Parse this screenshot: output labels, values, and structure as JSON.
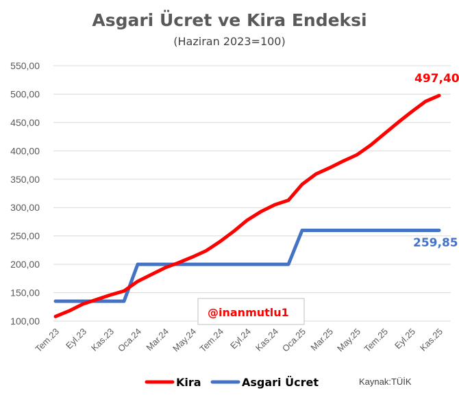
{
  "chart_data": {
    "type": "line",
    "title": "Asgari Ücret ve Kira Endeksi",
    "subtitle": "(Haziran 2023=100)",
    "ylim": [
      100,
      550
    ],
    "yticks": [
      "100,00",
      "150,00",
      "200,00",
      "250,00",
      "300,00",
      "350,00",
      "400,00",
      "450,00",
      "500,00",
      "550,00"
    ],
    "grid": true,
    "x": [
      "Tem.23",
      "Ağu.23",
      "Eyl.23",
      "Eki.23",
      "Kas.23",
      "Ara.23",
      "Oca.24",
      "Şub.24",
      "Mar.24",
      "Nis.24",
      "May.24",
      "Haz.24",
      "Tem.24",
      "Ağu.24",
      "Eyl.24",
      "Eki.24",
      "Kas.24",
      "Ara.24",
      "Oca.25",
      "Şub.25",
      "Mar.25",
      "Nis.25",
      "May.25",
      "Haz.25",
      "Tem.25",
      "Ağu.25",
      "Eyl.25",
      "Eki.25",
      "Kas.25"
    ],
    "xtick_labels": [
      "Tem.23",
      "Eyl.23",
      "Kas.23",
      "Oca.24",
      "Mar.24",
      "May.24",
      "Tem.24",
      "Eyl.24",
      "Kas.24",
      "Oca.25",
      "Mar.25",
      "May.25",
      "Tem.25",
      "Eyl.25",
      "Kas.25"
    ],
    "series": [
      {
        "name": "Kira",
        "color": "#ff0000",
        "values": [
          108,
          118,
          130,
          138,
          146,
          153,
          170,
          182,
          194,
          203,
          213,
          224,
          240,
          258,
          278,
          293,
          305,
          313,
          341,
          359,
          370,
          382,
          393,
          410,
          430,
          450,
          469,
          487,
          497.4
        ]
      },
      {
        "name": "Asgari Ücret",
        "color": "#4472c4",
        "values": [
          135,
          135,
          135,
          135,
          135,
          135,
          200,
          200,
          200,
          200,
          200,
          200,
          200,
          200,
          200,
          200,
          200,
          200,
          259.85,
          259.85,
          259.85,
          259.85,
          259.85,
          259.85,
          259.85,
          259.85,
          259.85,
          259.85,
          259.85
        ]
      }
    ],
    "annotations": {
      "kira_last": "497,40",
      "asgari_last": "259,85",
      "handle": "@inanmutlu1"
    },
    "legend_position": "bottom",
    "source": "Kaynak:TÜİK"
  }
}
